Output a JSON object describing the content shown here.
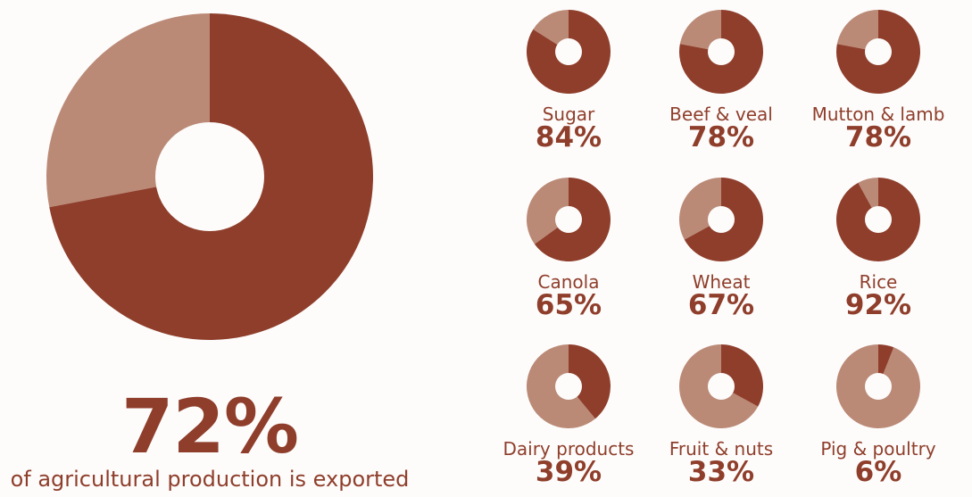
{
  "colors": {
    "exported": "#8f3e2b",
    "remaining": "#bb8a77",
    "text": "#8f3e2b",
    "background": "#fdfcfb"
  },
  "main": {
    "percent_label": "72%",
    "caption": "of agricultural production is exported"
  },
  "chart_data": [
    {
      "type": "pie",
      "title": "",
      "slices": [
        {
          "label": "exported",
          "value": 72
        },
        {
          "label": "not exported",
          "value": 28
        }
      ]
    },
    {
      "type": "pie",
      "title": "",
      "items": [
        {
          "label": "Sugar",
          "percent_label": "84%",
          "value": 84
        },
        {
          "label": "Beef & veal",
          "percent_label": "78%",
          "value": 78
        },
        {
          "label": "Mutton & lamb",
          "percent_label": "78%",
          "value": 78
        },
        {
          "label": "Canola",
          "percent_label": "65%",
          "value": 65
        },
        {
          "label": "Wheat",
          "percent_label": "67%",
          "value": 67
        },
        {
          "label": "Rice",
          "percent_label": "92%",
          "value": 92
        },
        {
          "label": "Dairy products",
          "percent_label": "39%",
          "value": 39
        },
        {
          "label": "Fruit & nuts",
          "percent_label": "33%",
          "value": 33
        },
        {
          "label": "Pig & poultry",
          "percent_label": "6%",
          "value": 6
        }
      ]
    }
  ]
}
